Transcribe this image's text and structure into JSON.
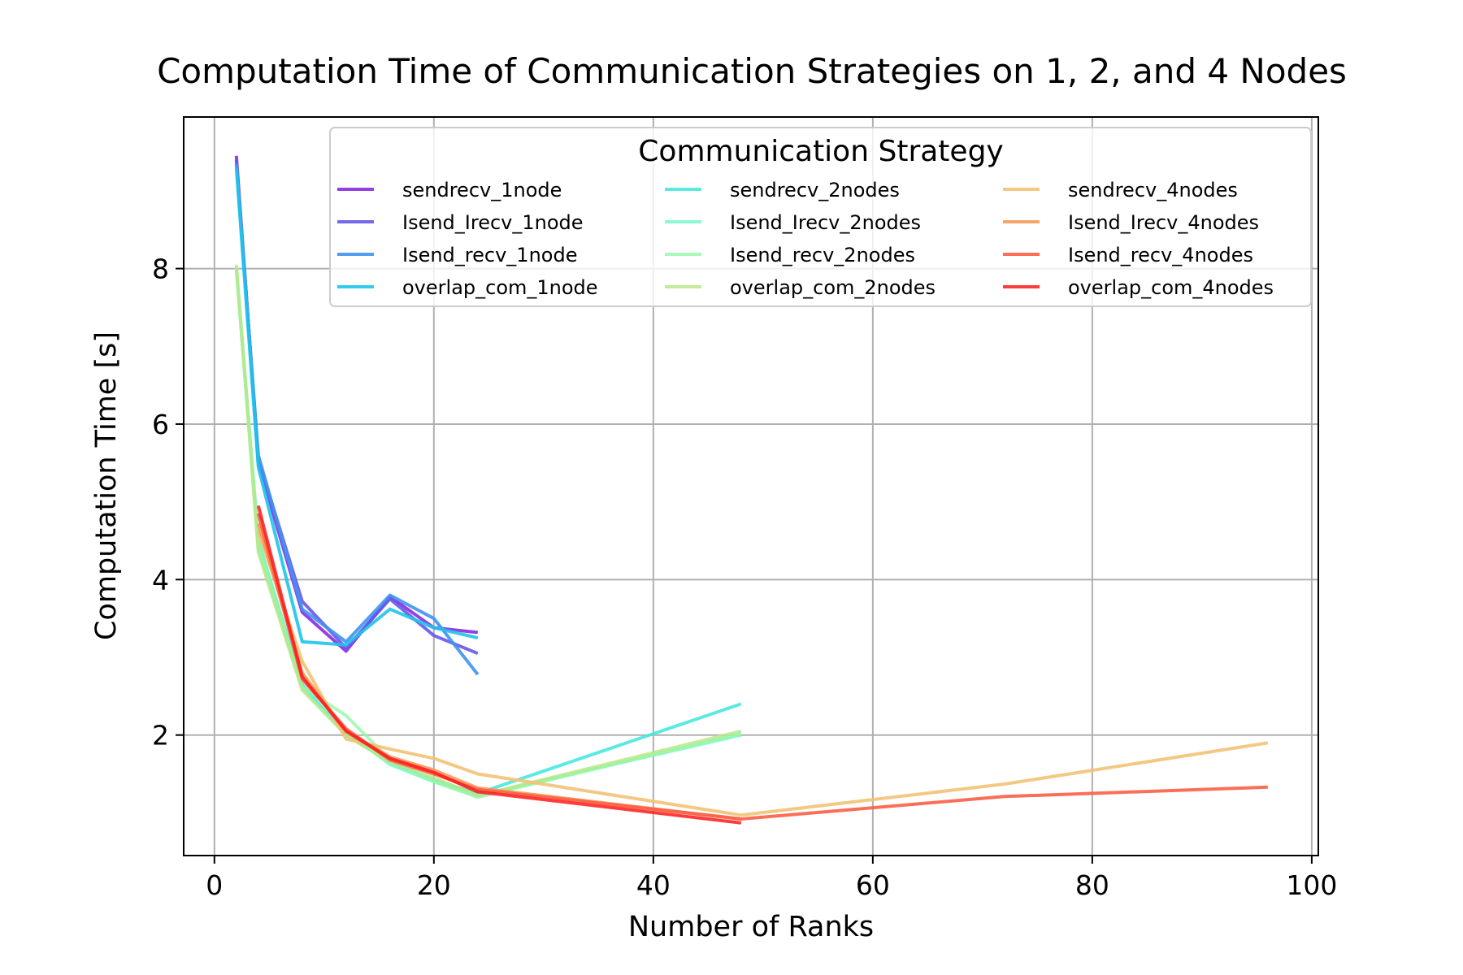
{
  "chart_data": {
    "type": "line",
    "title": "Computation Time of Communication Strategies on 1, 2, and 4 Nodes",
    "xlabel": "Number of Ranks",
    "ylabel": "Computation Time [s]",
    "xlim": [
      -2.8,
      100.6
    ],
    "ylim": [
      0.45,
      9.95
    ],
    "xticks": [
      0,
      20,
      40,
      60,
      80,
      100
    ],
    "yticks": [
      2,
      4,
      6,
      8
    ],
    "grid": true,
    "legend": {
      "title": "Communication Strategy",
      "placement": "top-right",
      "columns": 3
    },
    "series": [
      {
        "name": "sendrecv_1node",
        "color": "#8a2be2",
        "opacity": 0.9,
        "x": [
          2,
          4,
          8,
          12,
          16,
          20,
          24
        ],
        "y": [
          9.45,
          5.5,
          3.58,
          3.08,
          3.78,
          3.38,
          3.32
        ]
      },
      {
        "name": "Isend_Irecv_1node",
        "color": "#6558e9",
        "opacity": 0.9,
        "x": [
          2,
          4,
          8,
          12,
          16,
          20,
          24
        ],
        "y": [
          9.4,
          5.55,
          3.72,
          3.12,
          3.75,
          3.28,
          3.05
        ]
      },
      {
        "name": "Isend_recv_1node",
        "color": "#3f93f2",
        "opacity": 0.9,
        "x": [
          2,
          4,
          8,
          12,
          16,
          20,
          24
        ],
        "y": [
          9.35,
          5.6,
          3.62,
          3.2,
          3.8,
          3.5,
          2.78
        ]
      },
      {
        "name": "overlap_com_1node",
        "color": "#1ec4ea",
        "opacity": 0.9,
        "x": [
          2,
          4,
          8,
          12,
          16,
          20,
          24
        ],
        "y": [
          9.3,
          5.45,
          3.2,
          3.16,
          3.62,
          3.38,
          3.25
        ]
      },
      {
        "name": "sendrecv_2nodes",
        "color": "#3ee6dc",
        "opacity": 0.85,
        "x": [
          2,
          4,
          8,
          12,
          16,
          20,
          24,
          48
        ],
        "y": [
          8.0,
          4.5,
          2.65,
          2.0,
          1.65,
          1.42,
          1.25,
          2.4
        ]
      },
      {
        "name": "Isend_Irecv_2nodes",
        "color": "#6ff7c7",
        "opacity": 0.8,
        "x": [
          2,
          4,
          8,
          12,
          16,
          20,
          24,
          48
        ],
        "y": [
          8.0,
          4.4,
          2.6,
          2.05,
          1.62,
          1.4,
          1.22,
          2.0
        ]
      },
      {
        "name": "Isend_recv_2nodes",
        "color": "#94f9a9",
        "opacity": 0.8,
        "x": [
          2,
          4,
          8,
          12,
          16,
          20,
          24,
          48
        ],
        "y": [
          8.02,
          4.5,
          2.62,
          2.25,
          1.68,
          1.4,
          1.2,
          2.02
        ]
      },
      {
        "name": "overlap_com_2nodes",
        "color": "#b9e88a",
        "opacity": 0.85,
        "x": [
          2,
          4,
          8,
          12,
          16,
          20,
          24,
          48
        ],
        "y": [
          8.05,
          4.35,
          2.58,
          2.0,
          1.65,
          1.45,
          1.22,
          2.05
        ]
      },
      {
        "name": "sendrecv_4nodes",
        "color": "#f2c275",
        "opacity": 0.9,
        "x": [
          4,
          8,
          12,
          16,
          20,
          24,
          48,
          72,
          96
        ],
        "y": [
          4.62,
          2.95,
          1.95,
          1.82,
          1.7,
          1.5,
          0.97,
          1.37,
          1.9
        ]
      },
      {
        "name": "Isend_Irecv_4nodes",
        "color": "#f59a5a",
        "opacity": 0.9,
        "x": [
          4,
          8,
          12,
          16,
          20,
          24,
          48
        ],
        "y": [
          4.72,
          2.8,
          2.05,
          1.72,
          1.55,
          1.32,
          0.92
        ]
      },
      {
        "name": "Isend_recv_4nodes",
        "color": "#fb5f46",
        "opacity": 0.9,
        "x": [
          4,
          8,
          12,
          16,
          20,
          24,
          48,
          72,
          96
        ],
        "y": [
          4.85,
          2.72,
          2.08,
          1.68,
          1.5,
          1.3,
          0.92,
          1.21,
          1.33
        ]
      },
      {
        "name": "overlap_com_4nodes",
        "color": "#ff1a1a",
        "opacity": 0.85,
        "x": [
          4,
          8,
          12,
          16,
          20,
          24,
          48
        ],
        "y": [
          4.95,
          2.75,
          2.05,
          1.7,
          1.52,
          1.27,
          0.87
        ]
      }
    ]
  }
}
